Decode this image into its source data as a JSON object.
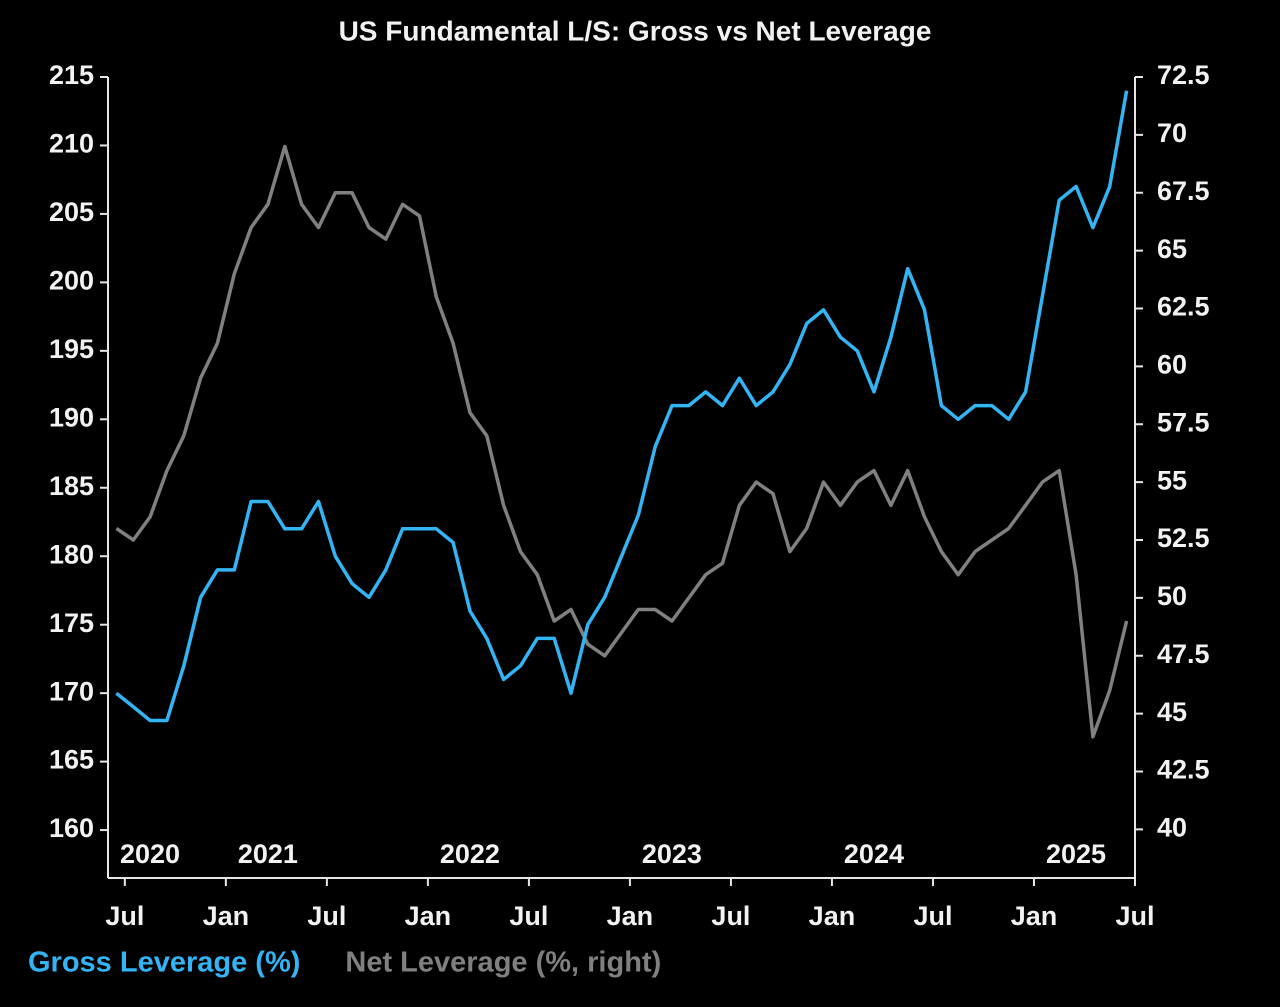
{
  "chart_data": {
    "type": "line",
    "title": "US Fundamental L/S: Gross vs Net Leverage",
    "x": [
      "2020-06",
      "2020-07",
      "2020-08",
      "2020-09",
      "2020-10",
      "2020-11",
      "2020-12",
      "2021-01",
      "2021-02",
      "2021-03",
      "2021-04",
      "2021-05",
      "2021-06",
      "2021-07",
      "2021-08",
      "2021-09",
      "2021-10",
      "2021-11",
      "2021-12",
      "2022-01",
      "2022-02",
      "2022-03",
      "2022-04",
      "2022-05",
      "2022-06",
      "2022-07",
      "2022-08",
      "2022-09",
      "2022-10",
      "2022-11",
      "2022-12",
      "2023-01",
      "2023-02",
      "2023-03",
      "2023-04",
      "2023-05",
      "2023-06",
      "2023-07",
      "2023-08",
      "2023-09",
      "2023-10",
      "2023-11",
      "2023-12",
      "2024-01",
      "2024-02",
      "2024-03",
      "2024-04",
      "2024-05",
      "2024-06",
      "2024-07",
      "2024-08",
      "2024-09",
      "2024-10",
      "2024-11",
      "2024-12",
      "2025-01",
      "2025-02",
      "2025-03",
      "2025-04",
      "2025-05",
      "2025-06"
    ],
    "series": [
      {
        "name": "Gross Leverage (%)",
        "color": "#33b5f5",
        "axis": "y",
        "values": [
          170,
          169,
          168,
          168,
          172,
          177,
          179,
          179,
          184,
          184,
          182,
          182,
          184,
          180,
          178,
          177,
          179,
          182,
          182,
          182,
          181,
          176,
          174,
          171,
          172,
          174,
          174,
          170,
          175,
          177,
          180,
          183,
          188,
          191,
          191,
          192,
          191,
          193,
          191,
          192,
          194,
          197,
          198,
          196,
          195,
          192,
          196,
          201,
          198,
          191,
          190,
          191,
          191,
          190,
          192,
          199,
          206,
          207,
          204,
          207,
          214
        ]
      },
      {
        "name": "Net Leverage (%, right)",
        "color": "#808080",
        "axis": "y2",
        "values": [
          53,
          52.5,
          53.5,
          55.5,
          57,
          59.5,
          61,
          64,
          66,
          67,
          69.5,
          67,
          66,
          67.5,
          67.5,
          66,
          65.5,
          67,
          66.5,
          63,
          61,
          58,
          57,
          54,
          52,
          51,
          49,
          49.5,
          48,
          47.5,
          48.5,
          49.5,
          49.5,
          49,
          50,
          51,
          51.5,
          54,
          55,
          54.5,
          52,
          53,
          55,
          54,
          55,
          55.5,
          54,
          55.5,
          53.5,
          52,
          51,
          52,
          52.5,
          53,
          54,
          55,
          55.5,
          51,
          44,
          46,
          49
        ]
      }
    ],
    "xlim": [
      "2020-06",
      "2025-07"
    ],
    "xticks": [
      {
        "value": "2020-07",
        "label": "Jul"
      },
      {
        "value": "2021-01",
        "label": "Jan"
      },
      {
        "value": "2021-07",
        "label": "Jul"
      },
      {
        "value": "2022-01",
        "label": "Jan"
      },
      {
        "value": "2022-07",
        "label": "Jul"
      },
      {
        "value": "2023-01",
        "label": "Jan"
      },
      {
        "value": "2023-07",
        "label": "Jul"
      },
      {
        "value": "2024-01",
        "label": "Jan"
      },
      {
        "value": "2024-07",
        "label": "Jul"
      },
      {
        "value": "2025-01",
        "label": "Jan"
      },
      {
        "value": "2025-07",
        "label": "Jul"
      }
    ],
    "year_labels": [
      {
        "value": "2020-01",
        "label": "2020"
      },
      {
        "value": "2021-01",
        "label": "2021"
      },
      {
        "value": "2022-01",
        "label": "2022"
      },
      {
        "value": "2023-01",
        "label": "2023"
      },
      {
        "value": "2024-01",
        "label": "2024"
      },
      {
        "value": "2025-01",
        "label": "2025"
      }
    ],
    "ylim": [
      156.5,
      215
    ],
    "yticks": [
      160,
      165,
      170,
      175,
      180,
      185,
      190,
      195,
      200,
      205,
      210,
      215
    ],
    "y2lim": [
      37.9,
      72.5
    ],
    "y2ticks": [
      40,
      42.5,
      45,
      47.5,
      50,
      52.5,
      55,
      57.5,
      60,
      62.5,
      65,
      67.5,
      70,
      72.5
    ],
    "grid": false
  }
}
